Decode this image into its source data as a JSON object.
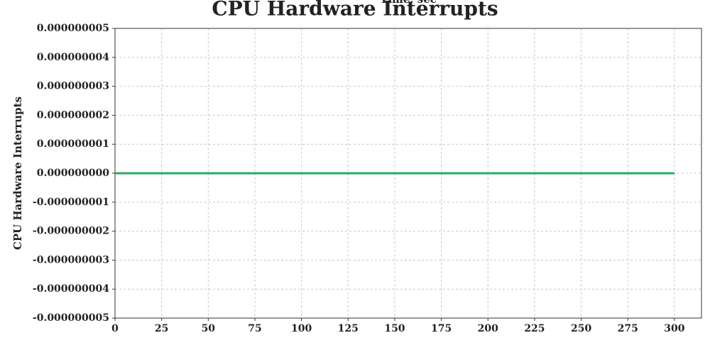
{
  "chart_data": {
    "type": "line",
    "title": "CPU Hardware Interrupts",
    "x_label": "Time, sec",
    "y_label": "CPU Hardware Interrupts",
    "x": [
      0,
      300
    ],
    "series": [
      {
        "name": "CPU Hardware Interrupts",
        "color": "#2aa86a",
        "values": [
          0,
          0
        ]
      }
    ],
    "xlim": [
      0,
      314.5
    ],
    "xticks": [
      0,
      25,
      50,
      75,
      100,
      125,
      150,
      175,
      200,
      225,
      250,
      275,
      300
    ],
    "ylim": [
      -5e-09,
      5e-09
    ],
    "yticks": [
      {
        "value": 5e-09,
        "label": "0.000000005"
      },
      {
        "value": 4e-09,
        "label": "0.000000004"
      },
      {
        "value": 3e-09,
        "label": "0.000000003"
      },
      {
        "value": 2e-09,
        "label": "0.000000002"
      },
      {
        "value": 1e-09,
        "label": "0.000000001"
      },
      {
        "value": 0,
        "label": "0.000000000"
      },
      {
        "value": -1e-09,
        "label": "-0.000000001"
      },
      {
        "value": -2e-09,
        "label": "-0.000000002"
      },
      {
        "value": -3e-09,
        "label": "-0.000000003"
      },
      {
        "value": -4e-09,
        "label": "-0.000000004"
      },
      {
        "value": -5e-09,
        "label": "-0.000000005"
      }
    ],
    "grid": true
  }
}
